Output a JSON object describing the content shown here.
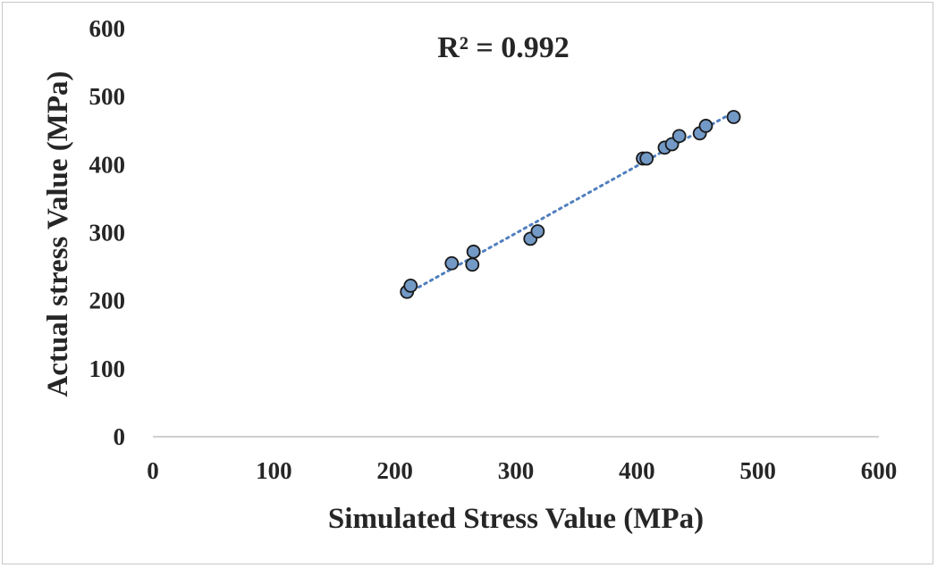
{
  "chart_data": {
    "type": "scatter",
    "title": "",
    "xlabel": "Simulated Stress Value (MPa)",
    "ylabel": "Actual stress Value (MPa)",
    "annotation": "R² = 0.992",
    "xlim": [
      0,
      600
    ],
    "ylim": [
      0,
      600
    ],
    "xticks": [
      0,
      100,
      200,
      300,
      400,
      500,
      600
    ],
    "yticks": [
      0,
      100,
      200,
      300,
      400,
      500,
      600
    ],
    "grid": false,
    "trendline": {
      "style": "dotted",
      "type": "linear",
      "color": "#4f7fbf"
    },
    "marker_color": "#7399c6",
    "marker_edge": "#1a1a1a",
    "points": [
      {
        "x": 210,
        "y": 213
      },
      {
        "x": 213,
        "y": 222
      },
      {
        "x": 247,
        "y": 255
      },
      {
        "x": 264,
        "y": 253
      },
      {
        "x": 265,
        "y": 272
      },
      {
        "x": 312,
        "y": 291
      },
      {
        "x": 318,
        "y": 302
      },
      {
        "x": 405,
        "y": 409
      },
      {
        "x": 408,
        "y": 409
      },
      {
        "x": 423,
        "y": 425
      },
      {
        "x": 429,
        "y": 430
      },
      {
        "x": 435,
        "y": 442
      },
      {
        "x": 452,
        "y": 446
      },
      {
        "x": 457,
        "y": 457
      },
      {
        "x": 480,
        "y": 470
      }
    ]
  }
}
